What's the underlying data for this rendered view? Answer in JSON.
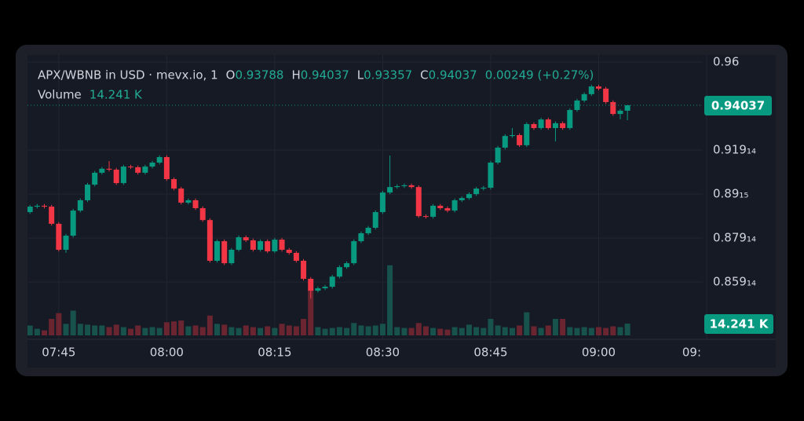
{
  "chart_data": {
    "type": "candlestick",
    "title": "APX/WBNB in USD · mevx.io, 1",
    "ohlc_letters": [
      "O",
      "H",
      "L",
      "C"
    ],
    "change_label": "0.00249 (+0.27%)",
    "volume_name": "Volume",
    "volume_value_label": "14.241 K",
    "up_color": "#089981",
    "down_color": "#f23645",
    "volume_up_color": "#17524d",
    "volume_down_color": "#6b2530",
    "x": [
      "07:41",
      "07:42",
      "07:43",
      "07:44",
      "07:45",
      "07:46",
      "07:47",
      "07:48",
      "07:49",
      "07:50",
      "07:51",
      "07:52",
      "07:53",
      "07:54",
      "07:55",
      "07:56",
      "07:57",
      "07:58",
      "07:59",
      "08:00",
      "08:01",
      "08:02",
      "08:03",
      "08:04",
      "08:05",
      "08:06",
      "08:07",
      "08:08",
      "08:09",
      "08:10",
      "08:11",
      "08:12",
      "08:13",
      "08:14",
      "08:15",
      "08:16",
      "08:17",
      "08:18",
      "08:19",
      "08:20",
      "08:21",
      "08:22",
      "08:23",
      "08:24",
      "08:25",
      "08:26",
      "08:27",
      "08:28",
      "08:29",
      "08:30",
      "08:31",
      "08:32",
      "08:33",
      "08:34",
      "08:35",
      "08:36",
      "08:37",
      "08:38",
      "08:39",
      "08:40",
      "08:41",
      "08:42",
      "08:43",
      "08:44",
      "08:45",
      "08:46",
      "08:47",
      "08:48",
      "08:49",
      "08:50",
      "08:51",
      "08:52",
      "08:53",
      "08:54",
      "08:55",
      "08:56",
      "08:57",
      "08:58",
      "08:59",
      "09:00",
      "09:01",
      "09:02",
      "09:03",
      "09:04"
    ],
    "open": [
      0.8918,
      0.8943,
      0.8947,
      0.8943,
      0.8865,
      0.8747,
      0.8811,
      0.8925,
      0.8972,
      0.9043,
      0.9097,
      0.9115,
      0.9111,
      0.905,
      0.9125,
      0.9122,
      0.9097,
      0.9125,
      0.9143,
      0.9168,
      0.9068,
      0.9025,
      0.8961,
      0.8972,
      0.8936,
      0.8882,
      0.8697,
      0.8786,
      0.8686,
      0.8747,
      0.8804,
      0.879,
      0.8747,
      0.8786,
      0.874,
      0.8793,
      0.8747,
      0.8733,
      0.8697,
      0.8615,
      0.8561,
      0.8572,
      0.8579,
      0.8625,
      0.8668,
      0.8686,
      0.8786,
      0.8822,
      0.8847,
      0.8918,
      0.9007,
      0.9032,
      0.9036,
      0.904,
      0.9032,
      0.89,
      0.8897,
      0.8947,
      0.8936,
      0.8925,
      0.8972,
      0.8982,
      0.9,
      0.9025,
      0.9029,
      0.9143,
      0.9211,
      0.9264,
      0.9268,
      0.9222,
      0.9318,
      0.93,
      0.9339,
      0.93,
      0.9322,
      0.93,
      0.9382,
      0.9425,
      0.9454,
      0.9489,
      0.9479,
      0.9418,
      0.9364,
      0.93788
    ],
    "high": [
      0.8951,
      0.8955,
      0.8955,
      0.8951,
      0.8873,
      0.8819,
      0.8933,
      0.898,
      0.9051,
      0.9105,
      0.9123,
      0.915,
      0.9119,
      0.9133,
      0.9133,
      0.913,
      0.9133,
      0.9151,
      0.9176,
      0.9176,
      0.9076,
      0.9033,
      0.898,
      0.898,
      0.8944,
      0.889,
      0.8794,
      0.8794,
      0.8755,
      0.8812,
      0.8812,
      0.8798,
      0.8794,
      0.8794,
      0.8801,
      0.8801,
      0.8755,
      0.8741,
      0.8705,
      0.8623,
      0.858,
      0.8587,
      0.8633,
      0.8676,
      0.8694,
      0.8794,
      0.883,
      0.8855,
      0.8926,
      0.9015,
      0.9175,
      0.9044,
      0.9048,
      0.9048,
      0.904,
      0.8908,
      0.8955,
      0.8955,
      0.8944,
      0.898,
      0.899,
      0.9008,
      0.9033,
      0.9037,
      0.9151,
      0.9219,
      0.9272,
      0.93,
      0.9276,
      0.9326,
      0.9326,
      0.9347,
      0.9347,
      0.933,
      0.933,
      0.939,
      0.9433,
      0.9462,
      0.9497,
      0.9497,
      0.9487,
      0.9426,
      0.9387,
      0.94037
    ],
    "low": [
      0.891,
      0.8935,
      0.8935,
      0.8857,
      0.8739,
      0.8733,
      0.8803,
      0.8917,
      0.8964,
      0.9035,
      0.9089,
      0.9103,
      0.9042,
      0.9042,
      0.9114,
      0.9089,
      0.9089,
      0.9117,
      0.9135,
      0.906,
      0.9017,
      0.8953,
      0.8953,
      0.8928,
      0.8874,
      0.8689,
      0.8689,
      0.8678,
      0.8678,
      0.8739,
      0.8782,
      0.8739,
      0.8739,
      0.8732,
      0.8732,
      0.8739,
      0.8725,
      0.8689,
      0.8607,
      0.8525,
      0.8553,
      0.8564,
      0.8571,
      0.8617,
      0.866,
      0.8678,
      0.8778,
      0.8814,
      0.8839,
      0.891,
      0.8999,
      0.9024,
      0.9028,
      0.9024,
      0.8892,
      0.8889,
      0.8889,
      0.8928,
      0.8917,
      0.8917,
      0.8964,
      0.8974,
      0.8992,
      0.9017,
      0.9021,
      0.9135,
      0.9203,
      0.9256,
      0.9214,
      0.9214,
      0.9292,
      0.9292,
      0.9292,
      0.9239,
      0.9292,
      0.9292,
      0.9374,
      0.9417,
      0.9446,
      0.9471,
      0.941,
      0.9356,
      0.934,
      0.93357
    ],
    "close": [
      0.8943,
      0.8947,
      0.8943,
      0.8865,
      0.8747,
      0.8811,
      0.8925,
      0.8972,
      0.9043,
      0.9097,
      0.9115,
      0.9111,
      0.905,
      0.9125,
      0.9122,
      0.9097,
      0.9125,
      0.9143,
      0.9168,
      0.9068,
      0.9025,
      0.8961,
      0.8972,
      0.8936,
      0.8882,
      0.8697,
      0.8786,
      0.8686,
      0.8747,
      0.8804,
      0.879,
      0.8747,
      0.8786,
      0.874,
      0.8793,
      0.8747,
      0.8733,
      0.8697,
      0.8615,
      0.8561,
      0.8572,
      0.8579,
      0.8625,
      0.8668,
      0.8686,
      0.8786,
      0.8822,
      0.8847,
      0.8918,
      0.9007,
      0.9032,
      0.9036,
      0.904,
      0.9032,
      0.89,
      0.8897,
      0.8947,
      0.8936,
      0.8925,
      0.8972,
      0.8982,
      0.9,
      0.9025,
      0.9029,
      0.9143,
      0.9211,
      0.9264,
      0.9268,
      0.9222,
      0.9318,
      0.93,
      0.9339,
      0.93,
      0.9322,
      0.93,
      0.9382,
      0.9425,
      0.9454,
      0.9489,
      0.9479,
      0.9418,
      0.9364,
      0.93788,
      0.94037
    ],
    "volume": [
      12,
      8,
      6,
      20,
      27,
      14,
      30,
      14,
      13,
      12,
      12,
      10,
      13,
      10,
      8,
      12,
      9,
      10,
      9,
      16,
      17,
      18,
      11,
      12,
      10,
      24,
      14,
      13,
      10,
      9,
      12,
      10,
      9,
      11,
      9,
      14,
      12,
      11,
      20,
      56,
      10,
      8,
      9,
      10,
      9,
      15,
      12,
      11,
      12,
      14,
      85,
      10,
      9,
      9,
      15,
      11,
      9,
      8,
      7,
      10,
      9,
      13,
      10,
      9,
      20,
      12,
      10,
      9,
      12,
      28,
      11,
      9,
      12,
      20,
      20,
      10,
      9,
      10,
      9,
      10,
      9,
      11,
      10,
      14.241
    ],
    "xlim": [
      "07:40",
      "09:15"
    ],
    "xticks": [
      "07:45",
      "08:00",
      "08:15",
      "08:30",
      "08:45",
      "09:00",
      {
        "value": "09:15",
        "label": "09:"
      }
    ],
    "ylim": [
      0.8358,
      0.9632
    ],
    "yticks": [
      0.96,
      {
        "value": 0.92,
        "label": "0.919₁₄"
      },
      {
        "value": 0.9,
        "label": "0.89₁₅"
      },
      {
        "value": 0.88,
        "label": "0.879₁₄"
      },
      {
        "value": 0.86,
        "label": "0.859₁₄"
      }
    ],
    "y2lim": [
      0,
      100
    ],
    "grid": true
  }
}
